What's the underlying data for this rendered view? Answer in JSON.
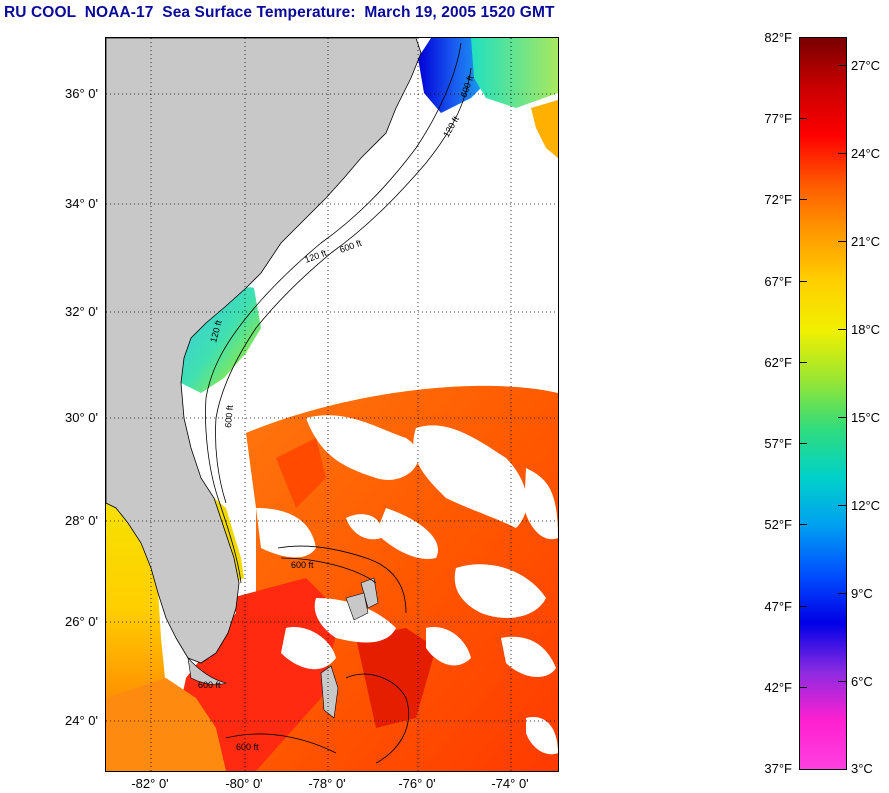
{
  "title": "RU COOL  NOAA-17  Sea Surface Temperature:  March 19, 2005 1520 GMT",
  "map": {
    "lat_labels": [
      "36° 0'",
      "34° 0'",
      "32° 0'",
      "30° 0'",
      "28° 0'",
      "26° 0'",
      "24° 0'"
    ],
    "lon_labels": [
      "-82° 0'",
      "-80° 0'",
      "-78° 0'",
      "-76° 0'",
      "-74° 0'"
    ],
    "contour_labels": [
      "120 ft",
      "600 ft",
      "120 ft",
      "600 ft",
      "120 ft",
      "600 ft",
      "600 ft",
      "600 ft",
      "600 ft"
    ],
    "colors": {
      "land": "#c8c8c8",
      "cloud": "#ffffff",
      "grid": "#000000"
    }
  },
  "colorbar": {
    "fahrenheit_labels": [
      "82°F",
      "77°F",
      "72°F",
      "67°F",
      "62°F",
      "57°F",
      "52°F",
      "47°F",
      "42°F",
      "37°F"
    ],
    "celsius_labels": [
      "27°C",
      "24°C",
      "21°C",
      "18°C",
      "15°C",
      "12°C",
      "9°C",
      "6°C",
      "3°C"
    ],
    "range_f": [
      37,
      82
    ],
    "gradient_top_to_bottom": [
      "#7a0000",
      "#c80000",
      "#ff0000",
      "#ff5a00",
      "#ff9a00",
      "#ffd000",
      "#f0f000",
      "#9ae632",
      "#32dc7a",
      "#00d2c8",
      "#00a0f0",
      "#0050ff",
      "#0000e6",
      "#8a2be2",
      "#ff20d0",
      "#ff40e0"
    ]
  }
}
